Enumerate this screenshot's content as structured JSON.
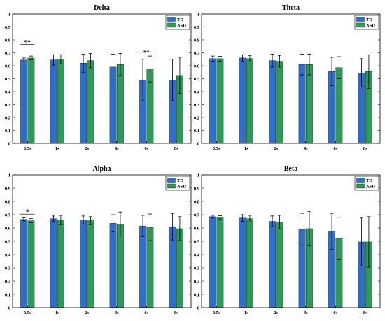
{
  "colors": {
    "TD": "#2f6fcc",
    "ASD": "#2e9a5a",
    "axis": "#000000"
  },
  "legend": [
    "TD",
    "ASD"
  ],
  "chart_data": [
    {
      "type": "bar",
      "title": "Delta",
      "categories": [
        "0.5s",
        "1s",
        "2s",
        "4s",
        "6s",
        "8s"
      ],
      "ylim": [
        0,
        1
      ],
      "yticks": [
        "0",
        "0.1",
        "0.2",
        "0.3",
        "0.4",
        "0.5",
        "0.6",
        "0.7",
        "0.8",
        "0.9",
        "1"
      ],
      "legend_placement": "top-right",
      "series": [
        {
          "name": "TD",
          "values": [
            0.645,
            0.645,
            0.62,
            0.59,
            0.49,
            0.49
          ],
          "errors": [
            0.015,
            0.04,
            0.07,
            0.1,
            0.16,
            0.16
          ]
        },
        {
          "name": "ASD",
          "values": [
            0.66,
            0.65,
            0.64,
            0.61,
            0.575,
            0.525
          ],
          "errors": [
            0.015,
            0.035,
            0.055,
            0.085,
            0.1,
            0.14
          ]
        }
      ],
      "annotations": [
        {
          "category": "0.5s",
          "text": "**",
          "y": 0.78
        },
        {
          "category": "6s",
          "text": "**",
          "y": 0.7
        }
      ]
    },
    {
      "type": "bar",
      "title": "Theta",
      "categories": [
        "0.5s",
        "1s",
        "2s",
        "4s",
        "6s",
        "8s"
      ],
      "ylim": [
        0,
        1
      ],
      "yticks": [
        "0",
        "0.1",
        "0.2",
        "0.3",
        "0.4",
        "0.5",
        "0.6",
        "0.7",
        "0.8",
        "0.9",
        "1"
      ],
      "legend_placement": "top-right",
      "series": [
        {
          "name": "TD",
          "values": [
            0.655,
            0.66,
            0.64,
            0.61,
            0.555,
            0.545
          ],
          "errors": [
            0.02,
            0.025,
            0.05,
            0.08,
            0.11,
            0.11
          ]
        },
        {
          "name": "ASD",
          "values": [
            0.655,
            0.655,
            0.635,
            0.61,
            0.585,
            0.555
          ],
          "errors": [
            0.018,
            0.025,
            0.045,
            0.08,
            0.085,
            0.13
          ]
        }
      ],
      "annotations": []
    },
    {
      "type": "bar",
      "title": "Alpha",
      "categories": [
        "0.5s",
        "1s",
        "2s",
        "4s",
        "6s",
        "8s"
      ],
      "ylim": [
        0,
        1
      ],
      "yticks": [
        "0",
        "0.1",
        "0.2",
        "0.3",
        "0.4",
        "0.5",
        "0.6",
        "0.7",
        "0.8",
        "0.9",
        "1"
      ],
      "legend_placement": "top-right",
      "series": [
        {
          "name": "TD",
          "values": [
            0.665,
            0.67,
            0.66,
            0.635,
            0.615,
            0.61
          ],
          "errors": [
            0.012,
            0.02,
            0.03,
            0.065,
            0.08,
            0.1
          ]
        },
        {
          "name": "ASD",
          "values": [
            0.655,
            0.66,
            0.655,
            0.63,
            0.605,
            0.595
          ],
          "errors": [
            0.015,
            0.035,
            0.03,
            0.09,
            0.1,
            0.09
          ]
        }
      ],
      "annotations": [
        {
          "category": "0.5s",
          "text": "*",
          "y": 0.72
        }
      ]
    },
    {
      "type": "bar",
      "title": "Beta",
      "categories": [
        "0.5s",
        "1s",
        "2s",
        "4s",
        "6s",
        "8s"
      ],
      "ylim": [
        0,
        1
      ],
      "yticks": [
        "0",
        "0.1",
        "0.2",
        "0.3",
        "0.4",
        "0.5",
        "0.6",
        "0.7",
        "0.8",
        "0.9",
        "1"
      ],
      "legend_placement": "top-right",
      "series": [
        {
          "name": "TD",
          "values": [
            0.685,
            0.675,
            0.65,
            0.59,
            0.575,
            0.495
          ],
          "errors": [
            0.01,
            0.025,
            0.04,
            0.12,
            0.135,
            0.18
          ]
        },
        {
          "name": "ASD",
          "values": [
            0.68,
            0.67,
            0.645,
            0.595,
            0.52,
            0.495
          ],
          "errors": [
            0.012,
            0.025,
            0.05,
            0.13,
            0.16,
            0.19
          ]
        }
      ],
      "annotations": []
    }
  ]
}
